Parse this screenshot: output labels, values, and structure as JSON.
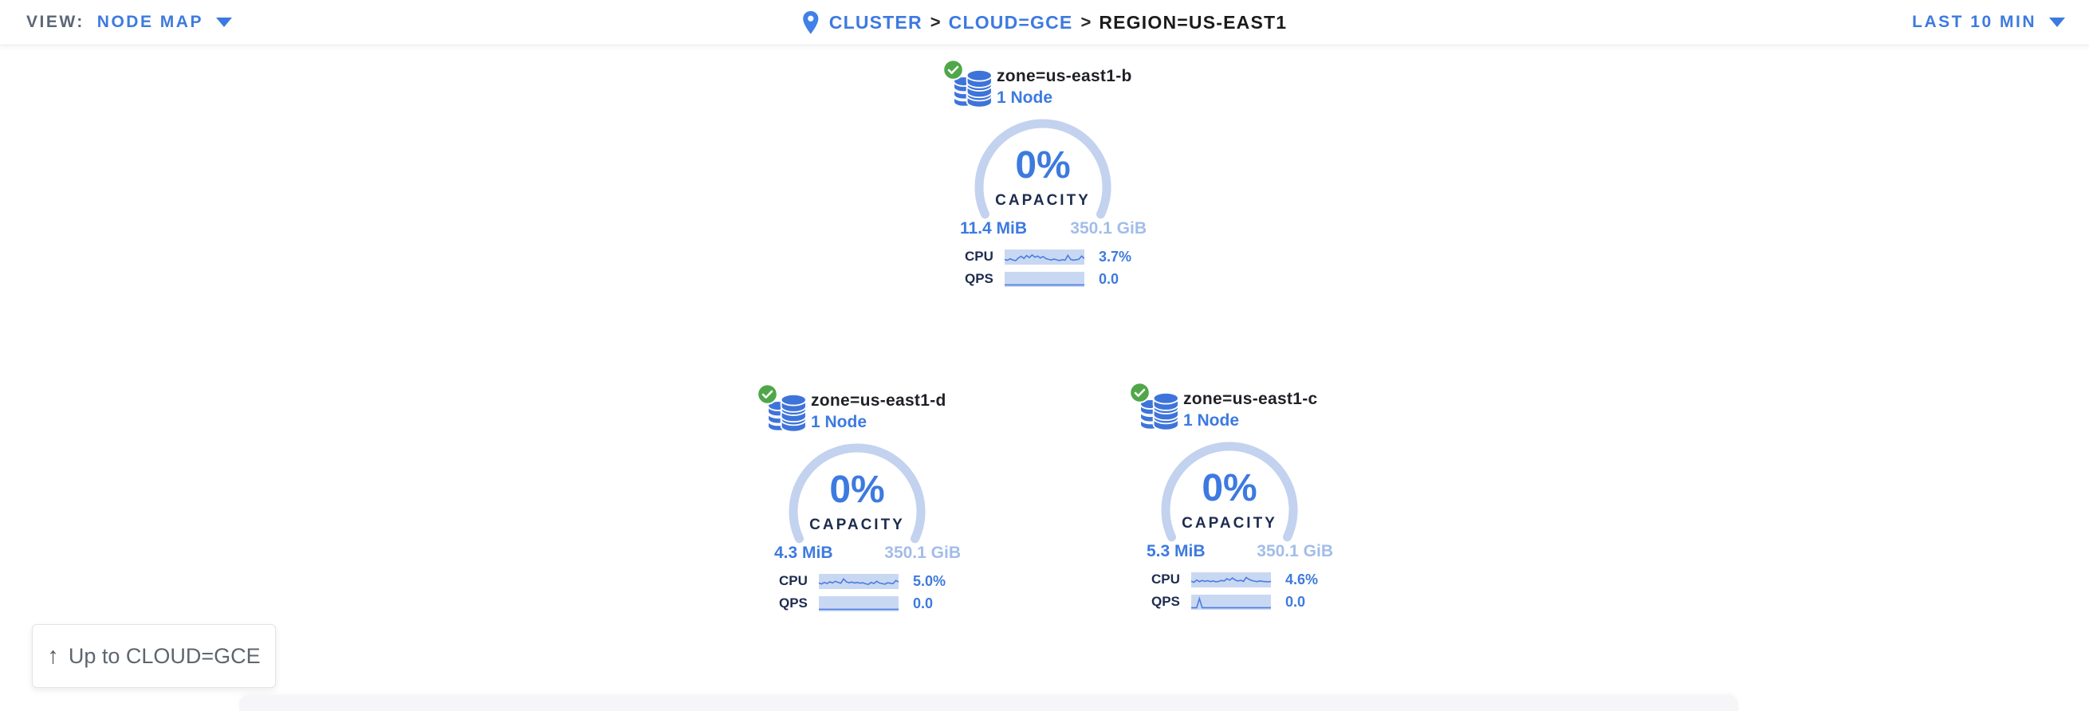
{
  "header": {
    "view_label": "VIEW:",
    "view_value": "NODE MAP",
    "time_range": "LAST 10 MIN",
    "breadcrumb": {
      "separator": ">",
      "items": [
        {
          "label": "CLUSTER"
        },
        {
          "label": "CLOUD=GCE"
        },
        {
          "label": "REGION=US-EAST1"
        }
      ]
    }
  },
  "zones": [
    {
      "id": "us-east1-b",
      "title": "zone=us-east1-b",
      "nodes_label": "1 Node",
      "status": "healthy",
      "capacity_pct": "0%",
      "capacity_label": "CAPACITY",
      "capacity_used": "11.4 MiB",
      "capacity_total": "350.1 GiB",
      "cpu_label": "CPU",
      "cpu_value": "3.7%",
      "qps_label": "QPS",
      "qps_value": "0.0",
      "cpu_spark": [
        0.32,
        0.25,
        0.38,
        0.28,
        0.22,
        0.45,
        0.6,
        0.42,
        0.66,
        0.48,
        0.72,
        0.52,
        0.62,
        0.45,
        0.58,
        0.4,
        0.33,
        0.28,
        0.36,
        0.28,
        0.24,
        0.3,
        0.26,
        0.68,
        0.33,
        0.26,
        0.3,
        0.34,
        0.62,
        0.4
      ],
      "qps_spark": [
        0.05,
        0.05,
        0.05,
        0.05,
        0.05,
        0.05,
        0.05,
        0.05,
        0.05,
        0.05,
        0.05,
        0.05,
        0.05,
        0.05,
        0.05,
        0.05,
        0.05,
        0.05,
        0.05,
        0.05,
        0.05,
        0.05,
        0.05,
        0.05,
        0.05,
        0.05,
        0.05,
        0.05,
        0.05,
        0.05
      ]
    },
    {
      "id": "us-east1-d",
      "title": "zone=us-east1-d",
      "nodes_label": "1 Node",
      "status": "healthy",
      "capacity_pct": "0%",
      "capacity_label": "CAPACITY",
      "capacity_used": "4.3 MiB",
      "capacity_total": "350.1 GiB",
      "cpu_label": "CPU",
      "cpu_value": "5.0%",
      "qps_label": "QPS",
      "qps_value": "0.0",
      "cpu_spark": [
        0.4,
        0.32,
        0.45,
        0.35,
        0.5,
        0.4,
        0.55,
        0.45,
        0.38,
        0.75,
        0.5,
        0.42,
        0.48,
        0.4,
        0.45,
        0.38,
        0.42,
        0.33,
        0.28,
        0.45,
        0.35,
        0.55,
        0.4,
        0.35,
        0.3,
        0.42,
        0.38,
        0.35,
        0.62,
        0.48
      ],
      "qps_spark": [
        0.05,
        0.05,
        0.05,
        0.05,
        0.05,
        0.05,
        0.05,
        0.05,
        0.05,
        0.05,
        0.05,
        0.05,
        0.05,
        0.05,
        0.05,
        0.05,
        0.05,
        0.05,
        0.05,
        0.05,
        0.05,
        0.05,
        0.05,
        0.05,
        0.05,
        0.05,
        0.05,
        0.05,
        0.05,
        0.05
      ]
    },
    {
      "id": "us-east1-c",
      "title": "zone=us-east1-c",
      "nodes_label": "1 Node",
      "status": "healthy",
      "capacity_pct": "0%",
      "capacity_label": "CAPACITY",
      "capacity_used": "5.3 MiB",
      "capacity_total": "350.1 GiB",
      "cpu_label": "CPU",
      "cpu_value": "4.6%",
      "qps_label": "QPS",
      "qps_value": "0.0",
      "cpu_spark": [
        0.42,
        0.32,
        0.52,
        0.38,
        0.48,
        0.4,
        0.46,
        0.38,
        0.44,
        0.36,
        0.4,
        0.48,
        0.44,
        0.64,
        0.5,
        0.7,
        0.52,
        0.44,
        0.5,
        0.4,
        0.74,
        0.58,
        0.48,
        0.42,
        0.38,
        0.44,
        0.4,
        0.38,
        0.36,
        0.4
      ],
      "qps_spark": [
        0.05,
        0.05,
        0.05,
        0.85,
        0.05,
        0.05,
        0.05,
        0.05,
        0.05,
        0.05,
        0.05,
        0.05,
        0.05,
        0.05,
        0.05,
        0.05,
        0.05,
        0.05,
        0.05,
        0.05,
        0.05,
        0.05,
        0.05,
        0.05,
        0.05,
        0.05,
        0.05,
        0.05,
        0.05,
        0.05
      ]
    }
  ],
  "up_button": {
    "label": "Up to CLOUD=GCE"
  },
  "colors": {
    "accent_blue": "#3d7ae0",
    "arc_blue": "#c2d2ef",
    "total_blue": "#a2bde9",
    "dark_navy": "#1d2c4e",
    "title_black": "#1f2126",
    "healthy_green": "#50a74a",
    "spark_bg": "#c9d8f2",
    "spark_line": "#4b7ce0",
    "header_gray": "#5b6676",
    "button_gray": "#5d6570"
  }
}
